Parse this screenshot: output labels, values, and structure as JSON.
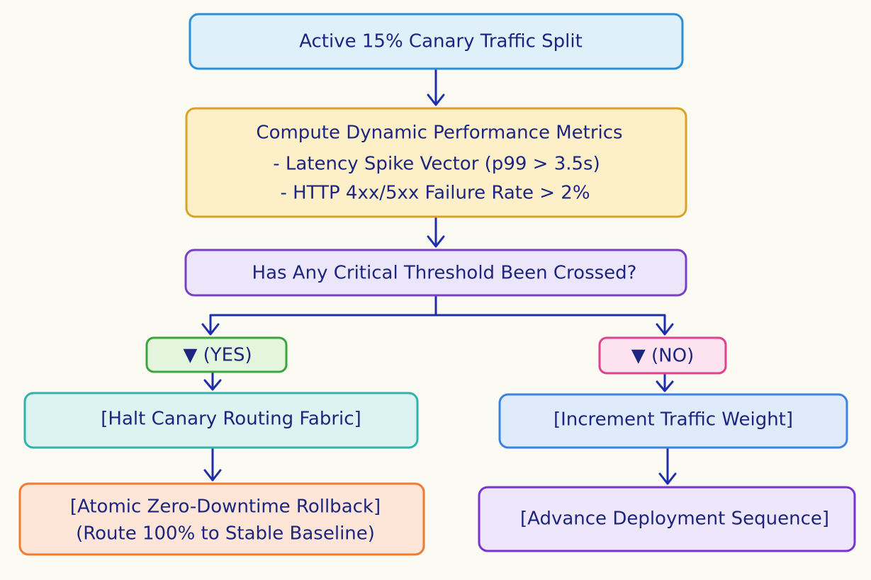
{
  "nodes": [
    {
      "lines": [
        "Active 15% Canary Traffic Split"
      ]
    },
    {
      "lines": [
        "Compute Dynamic Performance Metrics",
        "- Latency Spike Vector (p99 > 3.5s)",
        "- HTTP 4xx/5xx Failure Rate > 2%"
      ]
    },
    {
      "lines": [
        "Has Any Critical Threshold Been Crossed?"
      ]
    },
    {
      "lines": [
        "▼ (YES)"
      ]
    },
    {
      "lines": [
        "▼ (NO)"
      ]
    },
    {
      "lines": [
        "[Halt Canary Routing Fabric]"
      ]
    },
    {
      "lines": [
        "[Increment Traffic Weight]"
      ]
    },
    {
      "lines": [
        "[Atomic Zero-Downtime Rollback]",
        "(Route 100% to Stable Baseline)"
      ]
    },
    {
      "lines": [
        "[Advance Deployment Sequence]"
      ]
    }
  ]
}
